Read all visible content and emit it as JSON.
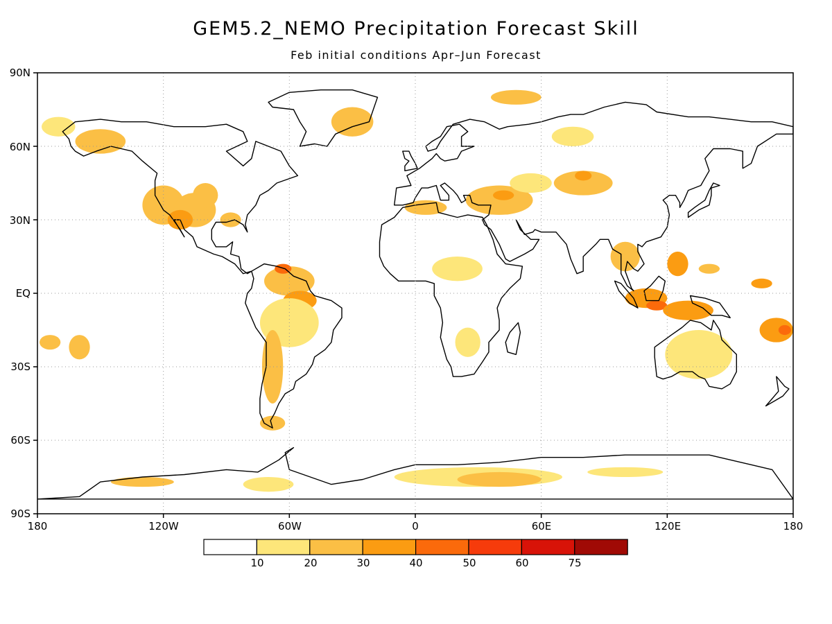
{
  "title": "GEM5.2_NEMO Precipitation Forecast Skill",
  "subtitle": "Feb initial conditions   Apr–Jun Forecast",
  "lat_labels": [
    "90N",
    "60N",
    "30N",
    "EQ",
    "30S",
    "60S",
    "90S"
  ],
  "lon_labels": [
    "180",
    "120W",
    "60W",
    "0",
    "60E",
    "120E",
    "180"
  ],
  "colorbar": {
    "colors": [
      "#ffffff",
      "#fde67a",
      "#fbbf45",
      "#fb9c12",
      "#fb6a0b",
      "#f63b0b",
      "#d81308",
      "#a00a05"
    ],
    "labels": [
      "10",
      "20",
      "30",
      "40",
      "50",
      "60",
      "75"
    ]
  },
  "chart_data": {
    "type": "map",
    "variable": "Precipitation Forecast Skill",
    "lon_range": [
      -180,
      180
    ],
    "lat_range": [
      -90,
      90
    ],
    "lon_ticks": [
      -180,
      -120,
      -60,
      0,
      60,
      120,
      180
    ],
    "lat_ticks": [
      90,
      60,
      30,
      0,
      -30,
      -60,
      -90
    ],
    "grid": "dotted",
    "levels": [
      10,
      20,
      30,
      40,
      50,
      60,
      75
    ],
    "skill_regions": [
      {
        "lon": -120,
        "lat": 36,
        "rx": 10,
        "ry": 8,
        "level": 20
      },
      {
        "lon": -105,
        "lat": 34,
        "rx": 10,
        "ry": 7,
        "level": 20
      },
      {
        "lon": -112,
        "lat": 30,
        "rx": 6,
        "ry": 4,
        "level": 30
      },
      {
        "lon": -100,
        "lat": 40,
        "rx": 6,
        "ry": 5,
        "level": 20
      },
      {
        "lon": -88,
        "lat": 30,
        "rx": 5,
        "ry": 3,
        "level": 20
      },
      {
        "lon": -150,
        "lat": 62,
        "rx": 12,
        "ry": 5,
        "level": 20
      },
      {
        "lon": -170,
        "lat": 68,
        "rx": 8,
        "ry": 4,
        "level": 10
      },
      {
        "lon": -60,
        "lat": 5,
        "rx": 12,
        "ry": 6,
        "level": 20
      },
      {
        "lon": -63,
        "lat": 10,
        "rx": 4,
        "ry": 2,
        "level": 40
      },
      {
        "lon": -55,
        "lat": -3,
        "rx": 8,
        "ry": 4,
        "level": 30
      },
      {
        "lon": -60,
        "lat": -12,
        "rx": 14,
        "ry": 10,
        "level": 10
      },
      {
        "lon": -68,
        "lat": -30,
        "rx": 5,
        "ry": 15,
        "level": 20
      },
      {
        "lon": -68,
        "lat": -53,
        "rx": 6,
        "ry": 3,
        "level": 20
      },
      {
        "lon": -160,
        "lat": -22,
        "rx": 5,
        "ry": 5,
        "level": 20
      },
      {
        "lon": -174,
        "lat": -20,
        "rx": 5,
        "ry": 3,
        "level": 20
      },
      {
        "lon": -30,
        "lat": 70,
        "rx": 10,
        "ry": 6,
        "level": 20
      },
      {
        "lon": 5,
        "lat": 35,
        "rx": 10,
        "ry": 3,
        "level": 20
      },
      {
        "lon": 40,
        "lat": 38,
        "rx": 16,
        "ry": 6,
        "level": 20
      },
      {
        "lon": 42,
        "lat": 40,
        "rx": 5,
        "ry": 2,
        "level": 30
      },
      {
        "lon": 55,
        "lat": 45,
        "rx": 10,
        "ry": 4,
        "level": 10
      },
      {
        "lon": 80,
        "lat": 45,
        "rx": 14,
        "ry": 5,
        "level": 20
      },
      {
        "lon": 80,
        "lat": 48,
        "rx": 4,
        "ry": 2,
        "level": 30
      },
      {
        "lon": 48,
        "lat": 80,
        "rx": 12,
        "ry": 3,
        "level": 20
      },
      {
        "lon": 75,
        "lat": 64,
        "rx": 10,
        "ry": 4,
        "level": 10
      },
      {
        "lon": 20,
        "lat": 10,
        "rx": 12,
        "ry": 5,
        "level": 10
      },
      {
        "lon": 25,
        "lat": -20,
        "rx": 6,
        "ry": 6,
        "level": 10
      },
      {
        "lon": 100,
        "lat": 15,
        "rx": 7,
        "ry": 6,
        "level": 20
      },
      {
        "lon": 125,
        "lat": 12,
        "rx": 5,
        "ry": 5,
        "level": 30
      },
      {
        "lon": 110,
        "lat": -2,
        "rx": 10,
        "ry": 4,
        "level": 30
      },
      {
        "lon": 115,
        "lat": -5,
        "rx": 5,
        "ry": 2,
        "level": 40
      },
      {
        "lon": 130,
        "lat": -7,
        "rx": 12,
        "ry": 4,
        "level": 30
      },
      {
        "lon": 135,
        "lat": -25,
        "rx": 16,
        "ry": 10,
        "level": 10
      },
      {
        "lon": 172,
        "lat": -15,
        "rx": 8,
        "ry": 5,
        "level": 30
      },
      {
        "lon": 176,
        "lat": -15,
        "rx": 3,
        "ry": 2,
        "level": 40
      },
      {
        "lon": 165,
        "lat": 4,
        "rx": 5,
        "ry": 2,
        "level": 30
      },
      {
        "lon": 140,
        "lat": 10,
        "rx": 5,
        "ry": 2,
        "level": 20
      },
      {
        "lon": 30,
        "lat": -75,
        "rx": 40,
        "ry": 4,
        "level": 10
      },
      {
        "lon": 40,
        "lat": -76,
        "rx": 20,
        "ry": 3,
        "level": 20
      },
      {
        "lon": -130,
        "lat": -77,
        "rx": 15,
        "ry": 2,
        "level": 20
      },
      {
        "lon": -70,
        "lat": -78,
        "rx": 12,
        "ry": 3,
        "level": 10
      },
      {
        "lon": 100,
        "lat": -73,
        "rx": 18,
        "ry": 2,
        "level": 10
      }
    ]
  }
}
